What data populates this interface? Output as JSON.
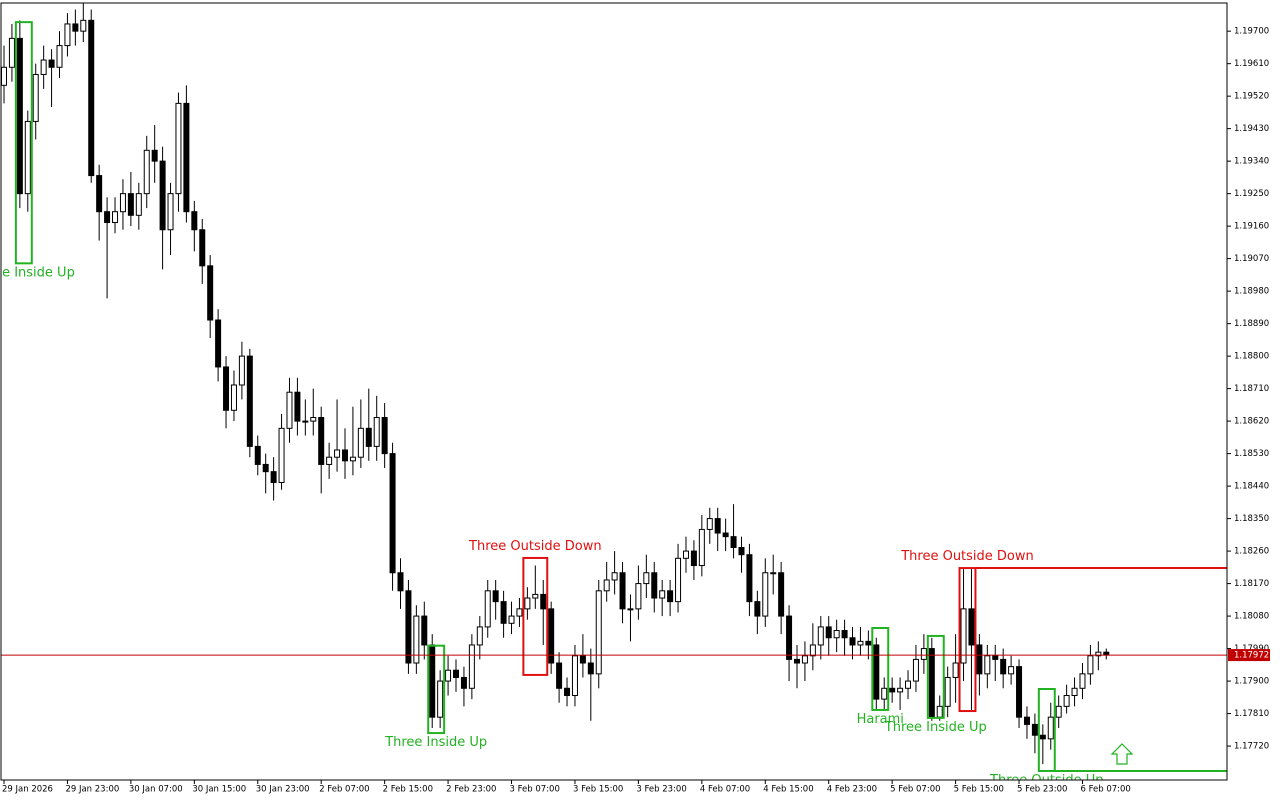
{
  "chart_data": {
    "type": "candlestick",
    "ylim": [
      1.17626,
      1.19778
    ],
    "yticks": [
      {
        "value": 1.197,
        "label": "1.19700"
      },
      {
        "value": 1.1961,
        "label": "1.19610"
      },
      {
        "value": 1.1952,
        "label": "1.19520"
      },
      {
        "value": 1.1943,
        "label": "1.19430"
      },
      {
        "value": 1.1934,
        "label": "1.19340"
      },
      {
        "value": 1.1925,
        "label": "1.19250"
      },
      {
        "value": 1.1916,
        "label": "1.19160"
      },
      {
        "value": 1.1907,
        "label": "1.19070"
      },
      {
        "value": 1.1898,
        "label": "1.18980"
      },
      {
        "value": 1.1889,
        "label": "1.18890"
      },
      {
        "value": 1.188,
        "label": "1.18800"
      },
      {
        "value": 1.1871,
        "label": "1.18710"
      },
      {
        "value": 1.1862,
        "label": "1.18620"
      },
      {
        "value": 1.1853,
        "label": "1.18530"
      },
      {
        "value": 1.1844,
        "label": "1.18440"
      },
      {
        "value": 1.1835,
        "label": "1.18350"
      },
      {
        "value": 1.1826,
        "label": "1.18260"
      },
      {
        "value": 1.1817,
        "label": "1.18170"
      },
      {
        "value": 1.1808,
        "label": "1.18080"
      },
      {
        "value": 1.1799,
        "label": "1.17990"
      },
      {
        "value": 1.179,
        "label": "1.17900"
      },
      {
        "value": 1.1781,
        "label": "1.17810"
      },
      {
        "value": 1.1772,
        "label": "1.17720"
      }
    ],
    "x_labels": [
      "29 Jan 2026",
      "29 Jan 23:00",
      "30 Jan 07:00",
      "30 Jan 15:00",
      "30 Jan 23:00",
      "2 Feb 07:00",
      "2 Feb 15:00",
      "2 Feb 23:00",
      "3 Feb 07:00",
      "3 Feb 15:00",
      "3 Feb 23:00",
      "4 Feb 07:00",
      "4 Feb 15:00",
      "4 Feb 23:00",
      "5 Feb 07:00",
      "5 Feb 15:00",
      "5 Feb 23:00",
      "6 Feb 07:00"
    ],
    "current_price": 1.17972,
    "ohlc": [
      [
        1.1955,
        1.1966,
        1.195,
        1.196
      ],
      [
        1.196,
        1.1972,
        1.1956,
        1.1968
      ],
      [
        1.1968,
        1.1973,
        1.1921,
        1.1925
      ],
      [
        1.1925,
        1.1948,
        1.192,
        1.1945
      ],
      [
        1.1945,
        1.1961,
        1.194,
        1.1958
      ],
      [
        1.1958,
        1.1966,
        1.1954,
        1.1962
      ],
      [
        1.1962,
        1.1965,
        1.1949,
        1.196
      ],
      [
        1.196,
        1.197,
        1.1957,
        1.1966
      ],
      [
        1.1966,
        1.1975,
        1.1963,
        1.1972
      ],
      [
        1.1972,
        1.1976,
        1.1966,
        1.197
      ],
      [
        1.197,
        1.1978,
        1.1967,
        1.1973
      ],
      [
        1.1973,
        1.1976,
        1.1928,
        1.193
      ],
      [
        1.193,
        1.1933,
        1.1912,
        1.192
      ],
      [
        1.192,
        1.1924,
        1.1896,
        1.1917
      ],
      [
        1.1917,
        1.1924,
        1.1914,
        1.192
      ],
      [
        1.192,
        1.1929,
        1.1915,
        1.1925
      ],
      [
        1.1925,
        1.1931,
        1.1916,
        1.1919
      ],
      [
        1.1919,
        1.1928,
        1.1915,
        1.1925
      ],
      [
        1.1925,
        1.1941,
        1.1921,
        1.1937
      ],
      [
        1.1937,
        1.1944,
        1.1928,
        1.1934
      ],
      [
        1.1934,
        1.1938,
        1.1904,
        1.1915
      ],
      [
        1.1915,
        1.1928,
        1.1908,
        1.1925
      ],
      [
        1.1925,
        1.1953,
        1.192,
        1.195
      ],
      [
        1.195,
        1.1955,
        1.1917,
        1.192
      ],
      [
        1.192,
        1.1923,
        1.1909,
        1.1915
      ],
      [
        1.1915,
        1.1918,
        1.19,
        1.1905
      ],
      [
        1.1905,
        1.1908,
        1.1885,
        1.189
      ],
      [
        1.189,
        1.1893,
        1.1873,
        1.1877
      ],
      [
        1.1877,
        1.188,
        1.186,
        1.1865
      ],
      [
        1.1865,
        1.1876,
        1.1862,
        1.1872
      ],
      [
        1.1872,
        1.1884,
        1.1868,
        1.188
      ],
      [
        1.188,
        1.1882,
        1.1852,
        1.1855
      ],
      [
        1.1855,
        1.1858,
        1.1847,
        1.185
      ],
      [
        1.185,
        1.1853,
        1.1842,
        1.1848
      ],
      [
        1.1848,
        1.1852,
        1.184,
        1.1845
      ],
      [
        1.1845,
        1.1864,
        1.1843,
        1.186
      ],
      [
        1.186,
        1.1874,
        1.1856,
        1.187
      ],
      [
        1.187,
        1.1874,
        1.1858,
        1.1862
      ],
      [
        1.1862,
        1.1868,
        1.1858,
        1.1862
      ],
      [
        1.1862,
        1.1871,
        1.1858,
        1.1863
      ],
      [
        1.1863,
        1.1866,
        1.1842,
        1.185
      ],
      [
        1.185,
        1.1856,
        1.1846,
        1.1852
      ],
      [
        1.1852,
        1.1868,
        1.1848,
        1.1854
      ],
      [
        1.1854,
        1.186,
        1.1846,
        1.1851
      ],
      [
        1.1851,
        1.1866,
        1.1847,
        1.1852
      ],
      [
        1.1852,
        1.1868,
        1.1849,
        1.186
      ],
      [
        1.186,
        1.1871,
        1.1851,
        1.1855
      ],
      [
        1.1855,
        1.1869,
        1.1851,
        1.1863
      ],
      [
        1.1863,
        1.1867,
        1.1849,
        1.1853
      ],
      [
        1.1853,
        1.1856,
        1.1815,
        1.182
      ],
      [
        1.182,
        1.1824,
        1.181,
        1.1815
      ],
      [
        1.1815,
        1.1818,
        1.1792,
        1.1795
      ],
      [
        1.1795,
        1.1811,
        1.1792,
        1.1808
      ],
      [
        1.1808,
        1.1812,
        1.1796,
        1.18
      ],
      [
        1.18,
        1.1803,
        1.1777,
        1.178
      ],
      [
        1.178,
        1.1793,
        1.1777,
        1.179
      ],
      [
        1.179,
        1.1797,
        1.1786,
        1.1793
      ],
      [
        1.1793,
        1.1796,
        1.1787,
        1.1791
      ],
      [
        1.1791,
        1.1794,
        1.1783,
        1.1788
      ],
      [
        1.1788,
        1.1803,
        1.1785,
        1.18
      ],
      [
        1.18,
        1.1808,
        1.1796,
        1.1805
      ],
      [
        1.1805,
        1.1818,
        1.1802,
        1.1815
      ],
      [
        1.1815,
        1.1818,
        1.1807,
        1.1812
      ],
      [
        1.1812,
        1.1815,
        1.1802,
        1.1806
      ],
      [
        1.1806,
        1.1812,
        1.1803,
        1.1808
      ],
      [
        1.1808,
        1.1813,
        1.1805,
        1.181
      ],
      [
        1.181,
        1.1816,
        1.1807,
        1.1813
      ],
      [
        1.1813,
        1.1822,
        1.181,
        1.1814
      ],
      [
        1.1814,
        1.1818,
        1.18,
        1.181
      ],
      [
        1.181,
        1.1812,
        1.1792,
        1.1795
      ],
      [
        1.1795,
        1.1798,
        1.1784,
        1.1788
      ],
      [
        1.1788,
        1.1791,
        1.1783,
        1.1786
      ],
      [
        1.1786,
        1.18,
        1.1783,
        1.1797
      ],
      [
        1.1797,
        1.1803,
        1.1791,
        1.1795
      ],
      [
        1.1795,
        1.1799,
        1.1779,
        1.1792
      ],
      [
        1.1792,
        1.1818,
        1.1788,
        1.1815
      ],
      [
        1.1815,
        1.1823,
        1.1812,
        1.1818
      ],
      [
        1.1818,
        1.1826,
        1.1814,
        1.182
      ],
      [
        1.182,
        1.1823,
        1.1806,
        1.181
      ],
      [
        1.181,
        1.1814,
        1.1801,
        1.181
      ],
      [
        1.181,
        1.1822,
        1.1807,
        1.1817
      ],
      [
        1.1817,
        1.1825,
        1.1813,
        1.182
      ],
      [
        1.182,
        1.1823,
        1.1809,
        1.1813
      ],
      [
        1.1813,
        1.1818,
        1.1808,
        1.1815
      ],
      [
        1.1815,
        1.1818,
        1.1808,
        1.1812
      ],
      [
        1.1812,
        1.1828,
        1.1809,
        1.1824
      ],
      [
        1.1824,
        1.183,
        1.182,
        1.1826
      ],
      [
        1.1826,
        1.1829,
        1.1818,
        1.1822
      ],
      [
        1.1822,
        1.1836,
        1.1819,
        1.1832
      ],
      [
        1.1832,
        1.1838,
        1.1828,
        1.1835
      ],
      [
        1.1835,
        1.1838,
        1.1826,
        1.1831
      ],
      [
        1.1831,
        1.1835,
        1.1826,
        1.183
      ],
      [
        1.183,
        1.1839,
        1.1824,
        1.1827
      ],
      [
        1.1827,
        1.183,
        1.182,
        1.1825
      ],
      [
        1.1825,
        1.1828,
        1.1808,
        1.1812
      ],
      [
        1.1812,
        1.1815,
        1.1803,
        1.1808
      ],
      [
        1.1808,
        1.1824,
        1.1805,
        1.182
      ],
      [
        1.182,
        1.1825,
        1.1814,
        1.182
      ],
      [
        1.182,
        1.1823,
        1.1803,
        1.1808
      ],
      [
        1.1808,
        1.1811,
        1.179,
        1.1796
      ],
      [
        1.1796,
        1.18,
        1.1788,
        1.1795
      ],
      [
        1.1795,
        1.1801,
        1.179,
        1.1797
      ],
      [
        1.1797,
        1.1806,
        1.1793,
        1.18
      ],
      [
        1.18,
        1.1808,
        1.1796,
        1.1805
      ],
      [
        1.1805,
        1.1808,
        1.1797,
        1.1802
      ],
      [
        1.1802,
        1.1807,
        1.1798,
        1.1804
      ],
      [
        1.1804,
        1.1807,
        1.1797,
        1.1802
      ],
      [
        1.1802,
        1.1805,
        1.1796,
        1.18
      ],
      [
        1.18,
        1.1805,
        1.1797,
        1.1801
      ],
      [
        1.1801,
        1.1804,
        1.1796,
        1.18
      ],
      [
        1.18,
        1.1802,
        1.1782,
        1.1785
      ],
      [
        1.1785,
        1.1791,
        1.1782,
        1.1788
      ],
      [
        1.1788,
        1.1791,
        1.1784,
        1.1787
      ],
      [
        1.1787,
        1.1791,
        1.1782,
        1.1788
      ],
      [
        1.1788,
        1.1793,
        1.1785,
        1.179
      ],
      [
        1.179,
        1.18,
        1.1787,
        1.1796
      ],
      [
        1.1796,
        1.1803,
        1.1792,
        1.1799
      ],
      [
        1.1799,
        1.1802,
        1.1779,
        1.178
      ],
      [
        1.178,
        1.1786,
        1.1779,
        1.1783
      ],
      [
        1.1783,
        1.1794,
        1.178,
        1.1791
      ],
      [
        1.1791,
        1.1803,
        1.1784,
        1.1795
      ],
      [
        1.1795,
        1.1821,
        1.179,
        1.181
      ],
      [
        1.181,
        1.1821,
        1.1782,
        1.18
      ],
      [
        1.18,
        1.1803,
        1.1786,
        1.1792
      ],
      [
        1.1792,
        1.18,
        1.1788,
        1.1797
      ],
      [
        1.1797,
        1.18,
        1.179,
        1.1796
      ],
      [
        1.1796,
        1.1799,
        1.1788,
        1.1792
      ],
      [
        1.1792,
        1.1797,
        1.1789,
        1.1794
      ],
      [
        1.1794,
        1.1796,
        1.1777,
        1.178
      ],
      [
        1.178,
        1.1783,
        1.1774,
        1.1778
      ],
      [
        1.1778,
        1.1781,
        1.177,
        1.1775
      ],
      [
        1.1775,
        1.1778,
        1.1767,
        1.1774
      ],
      [
        1.1774,
        1.1784,
        1.1771,
        1.178
      ],
      [
        1.178,
        1.1786,
        1.1777,
        1.1783
      ],
      [
        1.1783,
        1.1789,
        1.1781,
        1.1786
      ],
      [
        1.1786,
        1.1791,
        1.1783,
        1.1788
      ],
      [
        1.1788,
        1.1795,
        1.1785,
        1.1792
      ],
      [
        1.1792,
        1.18,
        1.1789,
        1.1797
      ],
      [
        1.1797,
        1.1801,
        1.1793,
        1.1798
      ],
      [
        1.1798,
        1.1799,
        1.1796,
        1.17972
      ]
    ],
    "patterns": [
      {
        "label": "Three Inside Up",
        "color": "#22b222",
        "start": 2,
        "end": 3,
        "high": 1.19725,
        "low": 1.19057,
        "extend": false
      },
      {
        "label": "Three Inside Up",
        "color": "#22b222",
        "start": 54,
        "end": 55,
        "high": 1.17998,
        "low": 1.17756,
        "extend": false
      },
      {
        "label": "Three Outside Down",
        "color": "#e01010",
        "start": 66,
        "end": 68,
        "high": 1.18241,
        "low": 1.17917,
        "extend": false
      },
      {
        "label": "Harami",
        "color": "#22b222",
        "start": 110,
        "end": 111,
        "high": 1.18047,
        "low": 1.1782,
        "extend": false
      },
      {
        "label": "Three Inside Up",
        "color": "#22b222",
        "start": 117,
        "end": 118,
        "high": 1.18025,
        "low": 1.17798,
        "extend": false
      },
      {
        "label": "Three Outside Down",
        "color": "#e01010",
        "start": 121,
        "end": 122,
        "high": 1.18213,
        "low": 1.17817,
        "extend": true
      },
      {
        "label": "Three Outside Up",
        "color": "#22b222",
        "start": 131,
        "end": 132,
        "high": 1.17878,
        "low": 1.17651,
        "extend": true
      }
    ]
  }
}
